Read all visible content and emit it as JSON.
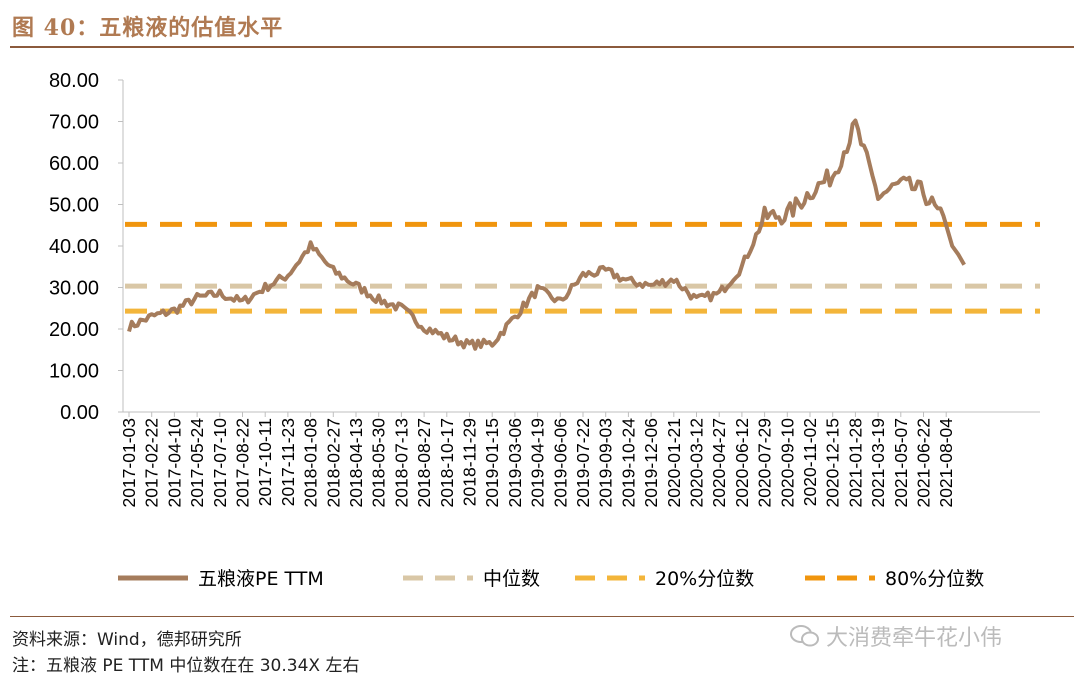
{
  "figure_title": "图 40：五粮液的估值水平",
  "source_note": "资料来源：Wind，德邦研究所",
  "footnote": "注：五粮液 PE TTM 中位数在在 30.34X 左右",
  "watermark": "大消费牵牛花小伟",
  "colors": {
    "series": "#A57C5C",
    "median": "#D9C7A6",
    "p20": "#F3B53A",
    "p80": "#F0950E",
    "rule": "#8B5A3C",
    "title": "#B07A52"
  },
  "chart_data": {
    "type": "line",
    "title": "",
    "xlabel": "",
    "ylabel": "",
    "ylim": [
      0,
      80
    ],
    "yticks": [
      "0.00",
      "10.00",
      "20.00",
      "30.00",
      "40.00",
      "50.00",
      "60.00",
      "70.00",
      "80.00"
    ],
    "categories": [
      "2017-01-03",
      "2017-02-22",
      "2017-04-10",
      "2017-05-24",
      "2017-07-10",
      "2017-08-22",
      "2017-10-11",
      "2017-11-23",
      "2018-01-08",
      "2018-02-27",
      "2018-04-13",
      "2018-05-30",
      "2018-07-13",
      "2018-08-27",
      "2018-10-17",
      "2018-11-29",
      "2019-01-15",
      "2019-03-06",
      "2019-04-19",
      "2019-06-06",
      "2019-07-22",
      "2019-09-03",
      "2019-10-24",
      "2019-12-06",
      "2020-01-21",
      "2020-03-12",
      "2020-04-27",
      "2020-06-12",
      "2020-07-29",
      "2020-09-10",
      "2020-11-02",
      "2020-12-15",
      "2021-01-28",
      "2021-03-19",
      "2021-05-07",
      "2021-06-22",
      "2021-08-04"
    ],
    "series": [
      {
        "name": "五粮液PE TTM",
        "style": "solid",
        "values": [
          20.5,
          23.0,
          24.5,
          27.5,
          28.5,
          26.5,
          30.0,
          33.0,
          40.0,
          34.0,
          30.5,
          27.0,
          25.0,
          20.5,
          18.0,
          16.2,
          16.5,
          23.0,
          29.5,
          26.5,
          33.0,
          34.0,
          31.5,
          30.5,
          32.0,
          27.0,
          28.5,
          35.0,
          47.0,
          47.5,
          53.0,
          57.0,
          69.0,
          52.0,
          55.0,
          53.0,
          45.0
        ],
        "tail": [
          40.0,
          38.0,
          35.5
        ]
      },
      {
        "name": "中位数",
        "style": "dashed",
        "value": 30.34
      },
      {
        "name": "20%分位数",
        "style": "dashed",
        "value": 24.3
      },
      {
        "name": "80%分位数",
        "style": "dashed",
        "value": 45.2
      }
    ],
    "legend_position": "bottom"
  }
}
